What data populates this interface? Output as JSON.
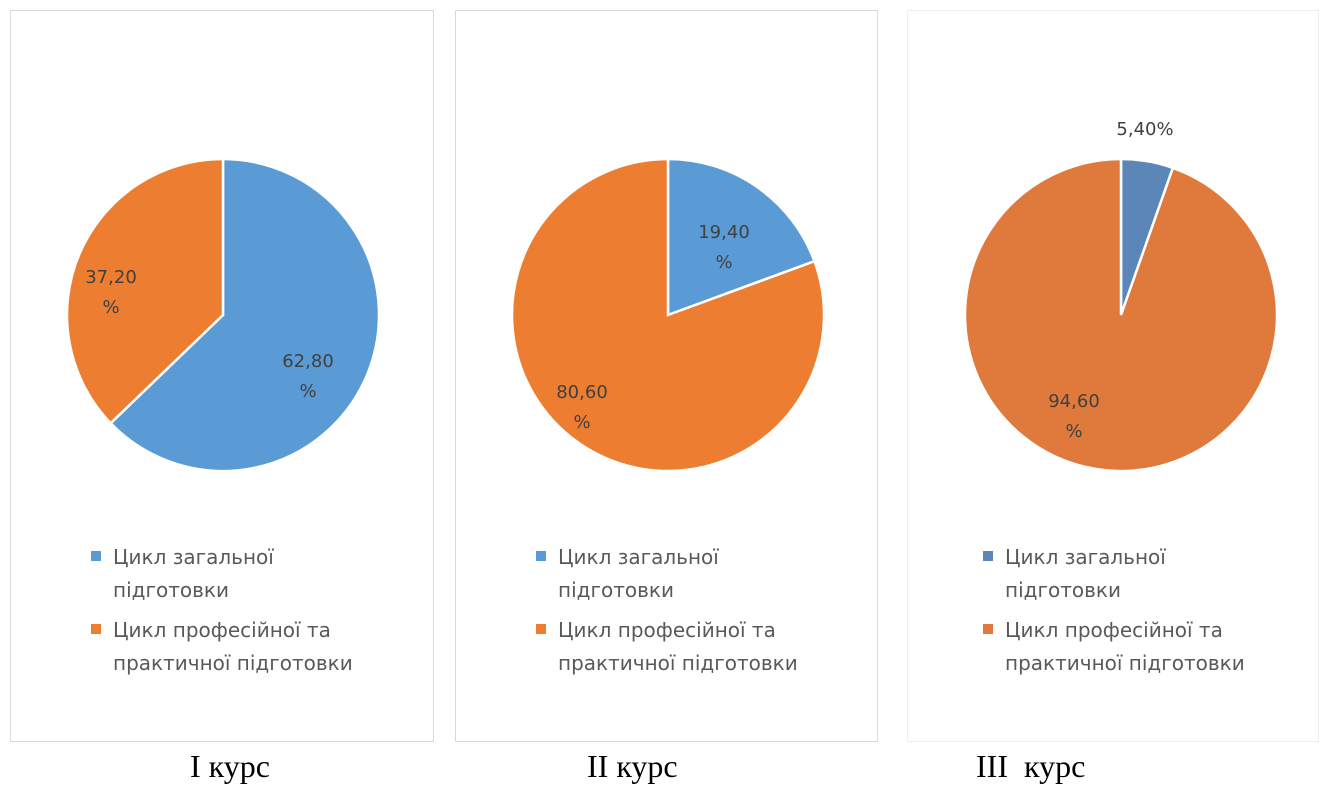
{
  "colors": {
    "general": "#5b9bd5",
    "professional": "#ed7d31",
    "general_panel3": "#5a87b8",
    "professional_panel3": "#e07a3c"
  },
  "chart_data": [
    {
      "type": "pie",
      "title": "",
      "caption": "І курс",
      "slices": [
        {
          "label": "Цикл загальної підготовки",
          "value": 62.8,
          "display": [
            "62,80",
            "%"
          ]
        },
        {
          "label": "Цикл професійної та практичної підготовки",
          "value": 37.2,
          "display": [
            "37,20",
            "%"
          ]
        }
      ],
      "legend": [
        "Цикл загальної",
        "підготовки",
        "Цикл професійної та",
        "практичної підготовки"
      ],
      "legend_position": "bottom"
    },
    {
      "type": "pie",
      "title": "",
      "caption": "ІІ курс",
      "slices": [
        {
          "label": "Цикл загальної підготовки",
          "value": 19.4,
          "display": [
            "19,40",
            "%"
          ]
        },
        {
          "label": "Цикл професійної та практичної підготовки",
          "value": 80.6,
          "display": [
            "80,60",
            "%"
          ]
        }
      ],
      "legend": [
        "Цикл загальної",
        "підготовки",
        "Цикл професійної та",
        "практичної підготовки"
      ],
      "legend_position": "bottom"
    },
    {
      "type": "pie",
      "title": "",
      "caption": "ІІІ  курс",
      "slices": [
        {
          "label": "Цикл загальної підготовки",
          "value": 5.4,
          "display": [
            "5,40%"
          ]
        },
        {
          "label": "Цикл професійної та практичної підготовки",
          "value": 94.6,
          "display": [
            "94,60",
            "%"
          ]
        }
      ],
      "legend": [
        "Цикл загальної",
        "підготовки",
        "Цикл професійної та",
        "практичної підготовки"
      ],
      "legend_position": "bottom"
    }
  ]
}
